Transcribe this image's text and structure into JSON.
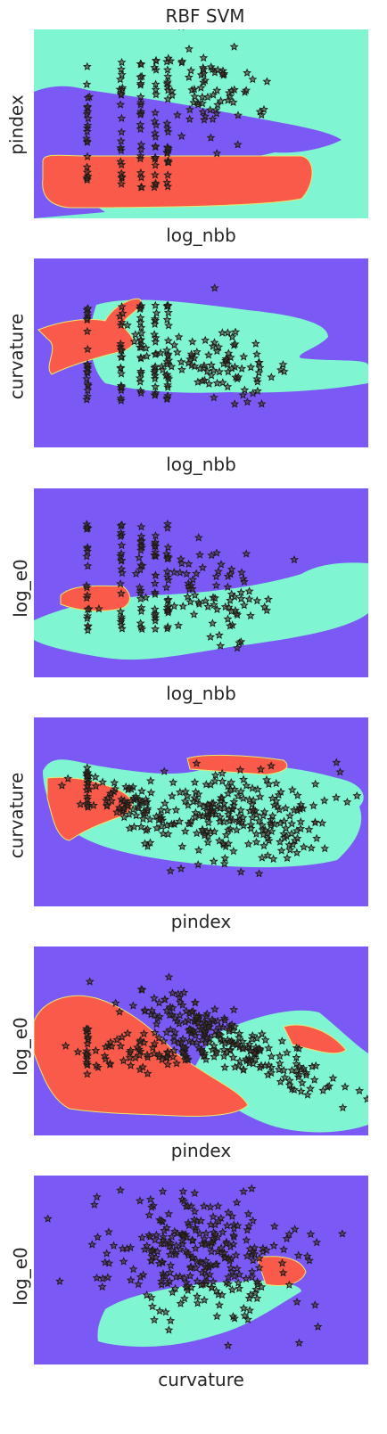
{
  "title": "RBF SVM",
  "colors": {
    "background_region": "#7b59f4",
    "class_a_region": "#80f5d1",
    "class_b_region": "#fa5a4a",
    "point_face": "#4a2a18",
    "point_edge": "#1a1a1a"
  },
  "chart_data": [
    {
      "type": "scatter",
      "xlabel": "log_nbb",
      "ylabel": "pindex",
      "ticks_shown": false,
      "description_regions": [
        "teal",
        "purple",
        "red"
      ],
      "x_pattern": "discrete columns plus spread",
      "point_cloud": "vertical stripes at left, scattered points up-right"
    },
    {
      "type": "scatter",
      "xlabel": "log_nbb",
      "ylabel": "curvature",
      "ticks_shown": false,
      "point_cloud": "vertical stripes at left, fan toward lower right"
    },
    {
      "type": "scatter",
      "xlabel": "log_nbb",
      "ylabel": "log_e0",
      "ticks_shown": false,
      "point_cloud": "vertical stripes at left, fan toward right"
    },
    {
      "type": "scatter",
      "xlabel": "pindex",
      "ylabel": "curvature",
      "ticks_shown": false,
      "point_cloud": "dense cloud center-right"
    },
    {
      "type": "scatter",
      "xlabel": "pindex",
      "ylabel": "log_e0",
      "ticks_shown": false,
      "point_cloud": "diagonal band from upper-left to lower-right"
    },
    {
      "type": "scatter",
      "xlabel": "curvature",
      "ylabel": "log_e0",
      "ticks_shown": false,
      "point_cloud": "dense blob center"
    }
  ]
}
